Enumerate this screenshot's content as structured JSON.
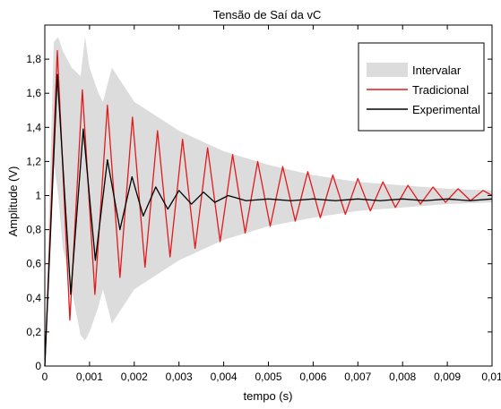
{
  "chart_data": {
    "type": "line",
    "title": "Tensão de Saí da vC",
    "xlabel": "tempo (s)",
    "ylabel": "Amplitude (V)",
    "xlim": [
      0,
      0.01
    ],
    "ylim": [
      0,
      2.0
    ],
    "xticks": [
      0,
      0.001,
      0.002,
      0.003,
      0.004,
      0.005,
      0.006,
      0.007,
      0.008,
      0.009,
      0.01
    ],
    "xtick_labels": [
      "0",
      "0,001",
      "0,002",
      "0,003",
      "0,004",
      "0,005",
      "0,006",
      "0,007",
      "0,008",
      "0,009",
      "0,01"
    ],
    "yticks": [
      0,
      0.2,
      0.4,
      0.6,
      0.8,
      1.0,
      1.2,
      1.4,
      1.6,
      1.8
    ],
    "ytick_labels": [
      "0",
      "0,2",
      "0,4",
      "0,6",
      "0,8",
      "1",
      "1,2",
      "1,4",
      "1,6",
      "1,8"
    ],
    "grid": false,
    "legend_position": "top-right",
    "series": [
      {
        "name": "Intervalar",
        "kind": "band",
        "color": "#dcdcdc",
        "x": [
          0,
          0.0002,
          0.0003,
          0.0004,
          0.0006,
          0.0008,
          0.0009,
          0.001,
          0.0012,
          0.0013,
          0.0015,
          0.002,
          0.003,
          0.004,
          0.005,
          0.006,
          0.007,
          0.008,
          0.009,
          0.01
        ],
        "upper": [
          0,
          1.9,
          1.93,
          1.85,
          1.75,
          1.7,
          1.93,
          1.75,
          1.6,
          1.55,
          1.75,
          1.55,
          1.38,
          1.26,
          1.18,
          1.12,
          1.08,
          1.06,
          1.04,
          1.03
        ],
        "lower": [
          0,
          1.2,
          1.0,
          0.7,
          0.45,
          0.18,
          0.15,
          0.2,
          0.35,
          0.45,
          0.25,
          0.45,
          0.62,
          0.74,
          0.82,
          0.87,
          0.91,
          0.93,
          0.95,
          0.96
        ]
      },
      {
        "name": "Tradicional",
        "kind": "line",
        "color": "#e31a1c",
        "x": [
          0,
          0.00028,
          0.00056,
          0.00084,
          0.00112,
          0.0014,
          0.00168,
          0.00196,
          0.00224,
          0.00252,
          0.0028,
          0.00308,
          0.00336,
          0.00364,
          0.00392,
          0.0042,
          0.00448,
          0.00476,
          0.00504,
          0.00532,
          0.0056,
          0.00588,
          0.00616,
          0.00644,
          0.00672,
          0.007,
          0.00728,
          0.00756,
          0.00784,
          0.00812,
          0.0084,
          0.00868,
          0.00896,
          0.00924,
          0.00952,
          0.0098,
          0.01
        ],
        "values": [
          0,
          1.85,
          0.27,
          1.62,
          0.42,
          1.53,
          0.52,
          1.46,
          0.58,
          1.38,
          0.64,
          1.33,
          0.69,
          1.28,
          0.73,
          1.24,
          0.78,
          1.2,
          0.82,
          1.17,
          0.85,
          1.14,
          0.87,
          1.12,
          0.89,
          1.1,
          0.91,
          1.08,
          0.93,
          1.06,
          0.95,
          1.05,
          0.96,
          1.04,
          0.97,
          1.03,
          1.0
        ]
      },
      {
        "name": "Experimental",
        "kind": "line",
        "color": "#000000",
        "x": [
          0,
          0.00028,
          0.00058,
          0.00086,
          0.00113,
          0.0014,
          0.00168,
          0.00195,
          0.0022,
          0.00248,
          0.00275,
          0.003,
          0.00328,
          0.00355,
          0.0038,
          0.0041,
          0.0045,
          0.005,
          0.0055,
          0.006,
          0.0065,
          0.007,
          0.0075,
          0.008,
          0.0085,
          0.009,
          0.0095,
          0.01
        ],
        "values": [
          0,
          1.71,
          0.42,
          1.39,
          0.62,
          1.21,
          0.8,
          1.11,
          0.88,
          1.05,
          0.92,
          1.03,
          0.95,
          1.02,
          0.96,
          1.0,
          0.97,
          0.98,
          0.97,
          0.98,
          0.97,
          0.98,
          0.97,
          0.98,
          0.97,
          0.98,
          0.97,
          0.98
        ]
      }
    ]
  }
}
